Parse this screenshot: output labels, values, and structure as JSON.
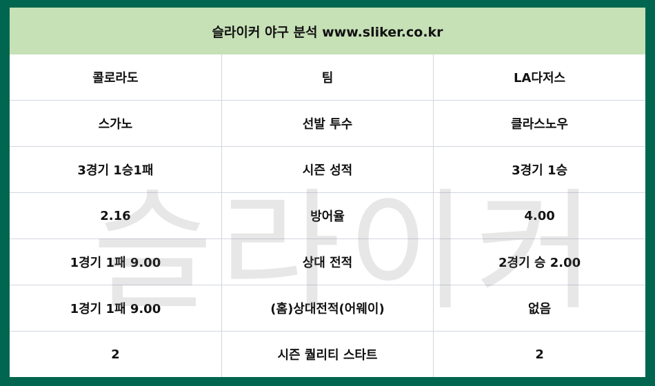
{
  "title": "슬라이커 야구 분석 www.sliker.co.kr",
  "watermark": "슬라이커",
  "rows": [
    [
      "콜로라도",
      "팀",
      "LA다저스"
    ],
    [
      "스가노",
      "선발 투수",
      "클라스노우"
    ],
    [
      "3경기 1승1패",
      "시즌 성적",
      "3경기 1승"
    ],
    [
      "2.16",
      "방어율",
      "4.00"
    ],
    [
      "1경기 1패 9.00",
      "상대 전적",
      "2경기 승 2.00"
    ],
    [
      "1경기 1패 9.00",
      "(홈)상대전적(어웨이)",
      "없음"
    ],
    [
      "2",
      "시즌 퀄리티 스타트",
      "2"
    ]
  ],
  "colors": {
    "frame": "#00664f",
    "header": "#c6e1b6"
  }
}
